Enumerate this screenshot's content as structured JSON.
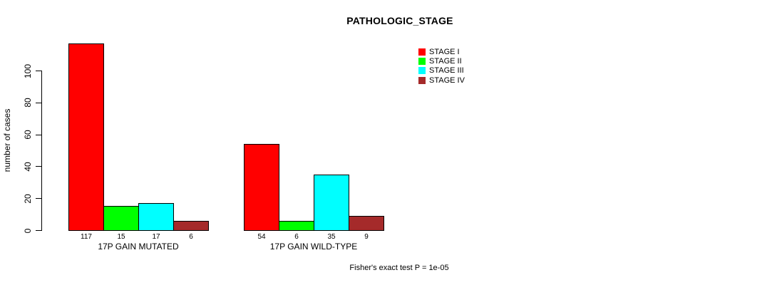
{
  "chart_data": {
    "type": "bar",
    "title": "PATHOLOGIC_STAGE",
    "xlabel": "",
    "ylabel": "number of cases",
    "ylim": [
      0,
      117
    ],
    "yticks": [
      0,
      20,
      40,
      60,
      80,
      100
    ],
    "grid": false,
    "legend_position": "inside-top-right",
    "categories": [
      "17P GAIN MUTATED",
      "17P GAIN WILD-TYPE"
    ],
    "series": [
      {
        "name": "STAGE I",
        "color": "#ff0000",
        "values": [
          117,
          54
        ]
      },
      {
        "name": "STAGE II",
        "color": "#00ff00",
        "values": [
          15,
          6
        ]
      },
      {
        "name": "STAGE III",
        "color": "#00ffff",
        "values": [
          17,
          35
        ]
      },
      {
        "name": "STAGE IV",
        "color": "#a52a2a",
        "values": [
          6,
          9
        ]
      }
    ],
    "bar_value_labels_shown": true,
    "annotation": "Fisher's exact test P = 1e-05"
  }
}
